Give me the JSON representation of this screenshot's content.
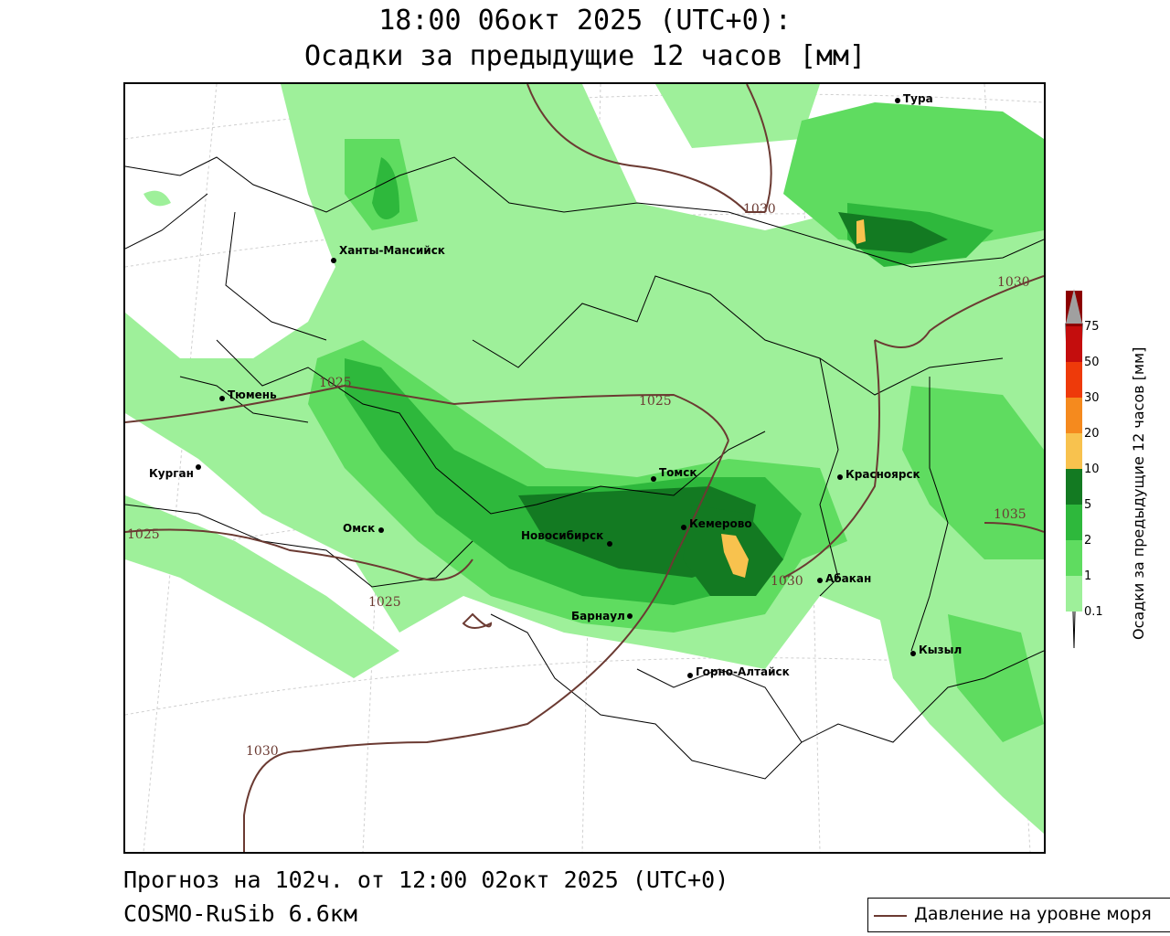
{
  "title": {
    "line1": "18:00 06окт 2025 (UTC+0):",
    "line2": "Осадки за предыдущие 12 часов [мм]"
  },
  "footer": {
    "forecast": "Прогноз на 102ч. от 12:00 02окт 2025 (UTC+0)",
    "model": "COSMO-RuSib 6.6км"
  },
  "legend": {
    "pressure_label": "Давление на уровне моря",
    "pressure_color": "#6b3a32"
  },
  "colorbar": {
    "title": "Осадки за предыдущие 12 часов [мм]",
    "ticks": [
      "0.1",
      "1",
      "2",
      "5",
      "10",
      "20",
      "30",
      "50",
      "75"
    ],
    "colors": [
      "#9ef09a",
      "#5fdc60",
      "#2eb83c",
      "#137a22",
      "#f8c24e",
      "#f58a1e",
      "#ee3a0a",
      "#c40d0d",
      "#8c0000",
      "#a0a0a0"
    ]
  },
  "cities": [
    {
      "name": "Тура"
    },
    {
      "name": "Ханты-Мансийск"
    },
    {
      "name": "Тюмень"
    },
    {
      "name": "Курган"
    },
    {
      "name": "Омск"
    },
    {
      "name": "Новосибирск"
    },
    {
      "name": "Томск"
    },
    {
      "name": "Кемерово"
    },
    {
      "name": "Барнаул"
    },
    {
      "name": "Горно-Алтайск"
    },
    {
      "name": "Красноярск"
    },
    {
      "name": "Абакан"
    },
    {
      "name": "Кызыл"
    }
  ],
  "isobars": [
    "1030",
    "1030",
    "1025",
    "1025",
    "1025",
    "1025",
    "1030",
    "1035",
    "1030"
  ]
}
